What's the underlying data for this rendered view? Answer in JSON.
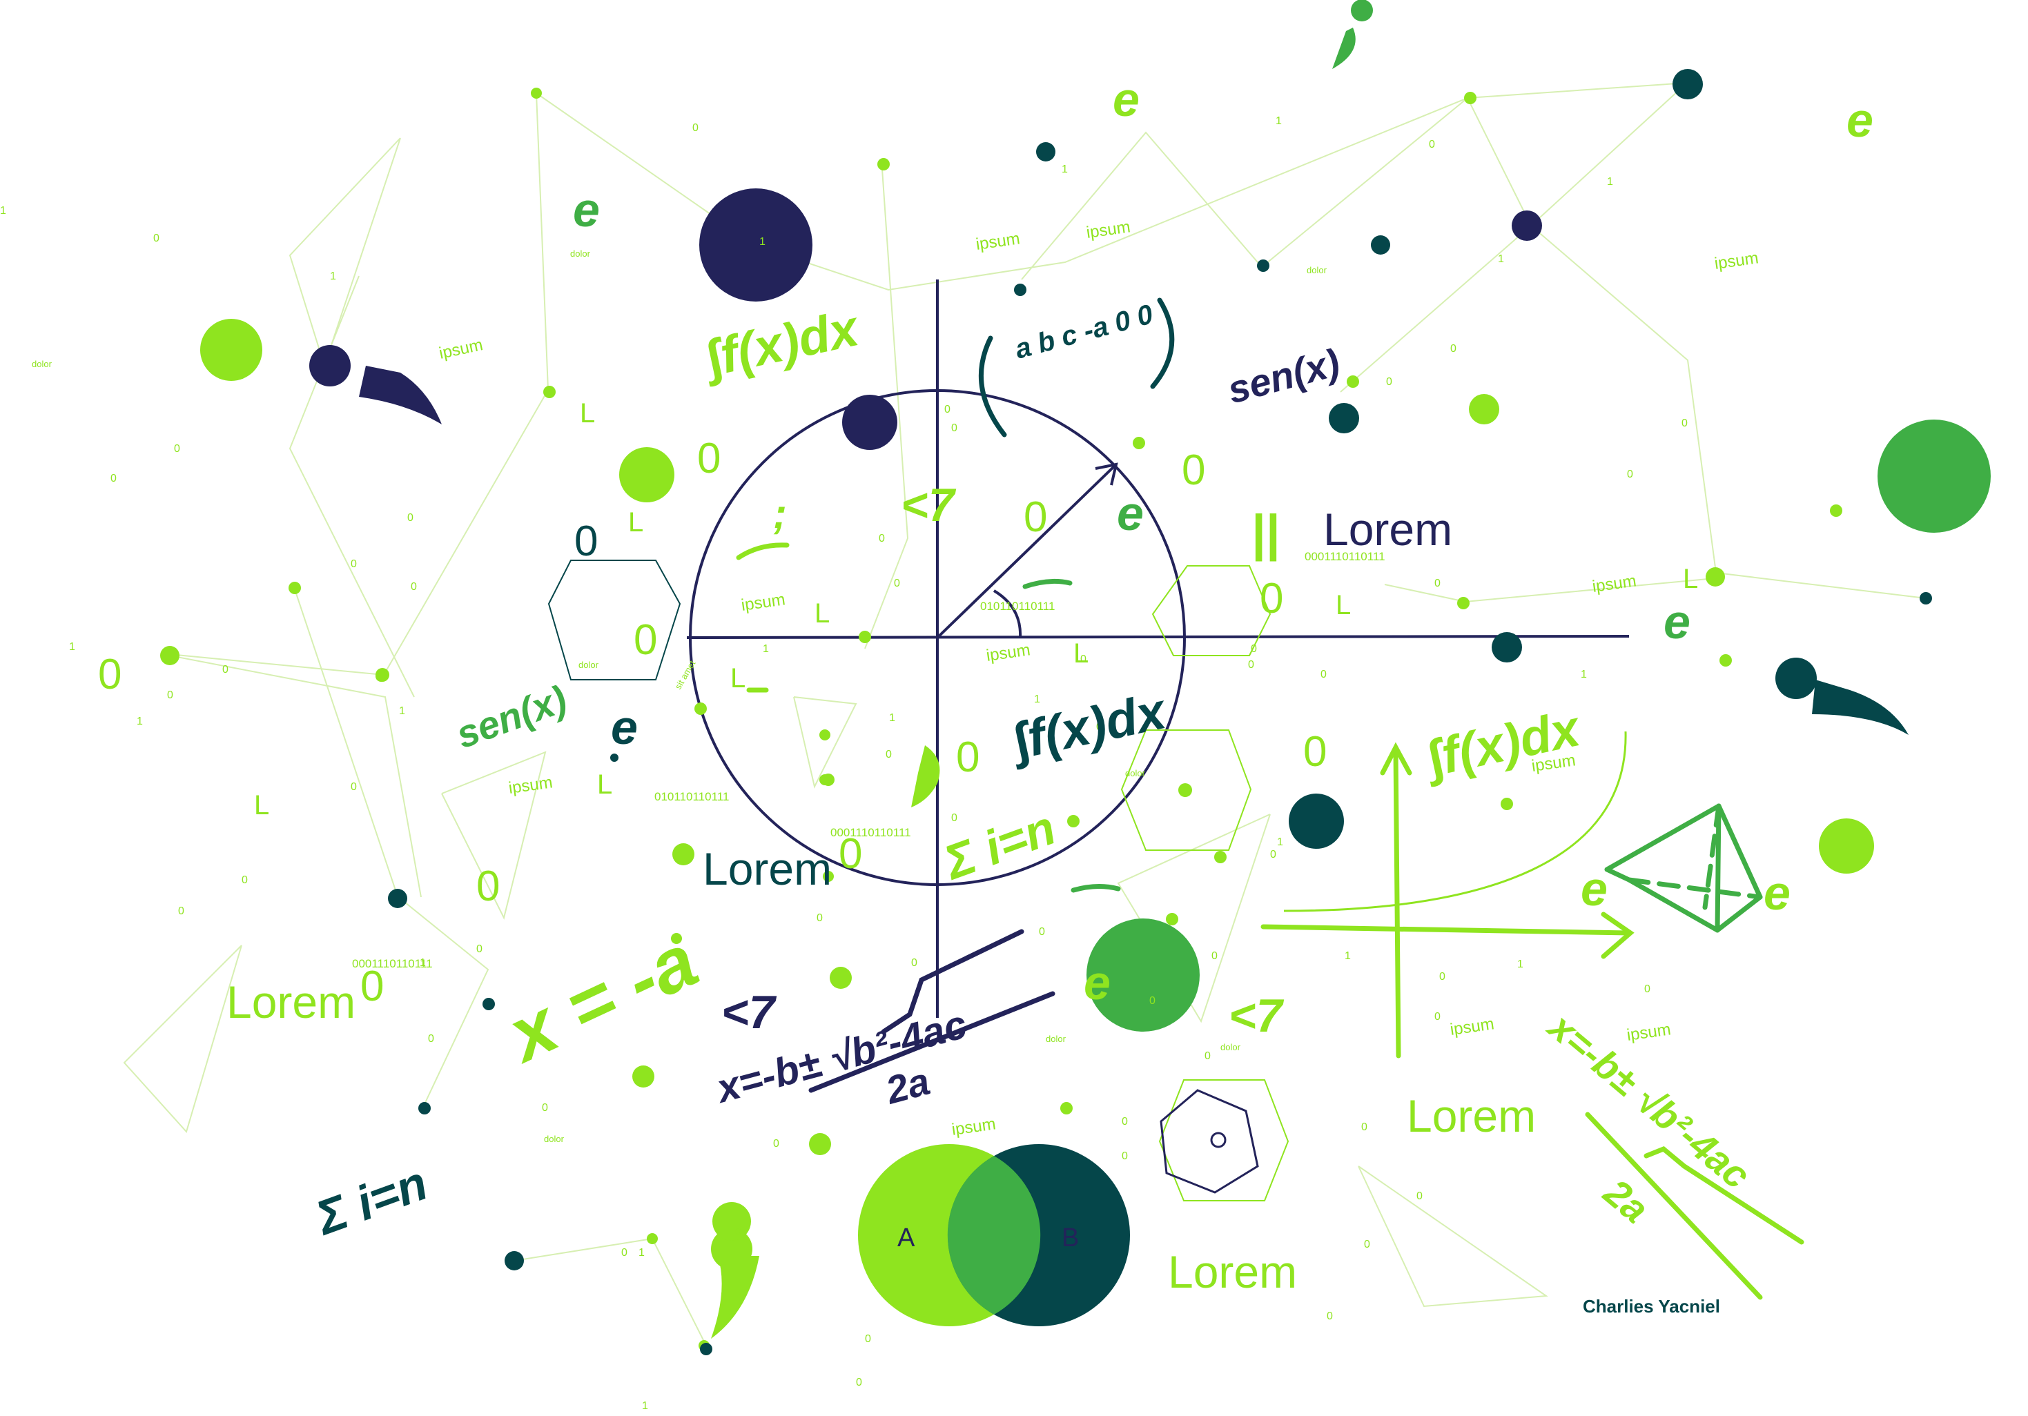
{
  "palette": {
    "navy": "#23235a",
    "teal": "#05464a",
    "lime": "#8fe41f",
    "green": "#3fae45",
    "paleLime": "#d7efb2"
  },
  "words": {
    "lorem": "Lorem",
    "ipsum": "ipsum",
    "dolor": "dolor",
    "sitAmet": "sit amet",
    "zero": "0",
    "one": "1",
    "binary": "0001110110111",
    "binaryShort": "010110110111"
  },
  "handwriting": {
    "integral": "∫f(x)dx",
    "sen": "sen(x)",
    "letterE": "e",
    "sigma": "Σ i=n",
    "angle": "<7",
    "xEqualsA": "x = -a",
    "quadraticTop": "x=-b± √b²-4ac",
    "quadraticBottom": "2a",
    "matrix": "a  b  c\n   -a  0  0",
    "semicolon": ";",
    "equals": "||",
    "L": "L"
  },
  "venn": {
    "labelA": "A",
    "labelB": "B"
  },
  "credit": "Charlies Yacniel",
  "icons": [
    "circle-graph-icon",
    "pyramid-icon",
    "hexagon-icon",
    "cube-icon",
    "semicolon-icon"
  ]
}
